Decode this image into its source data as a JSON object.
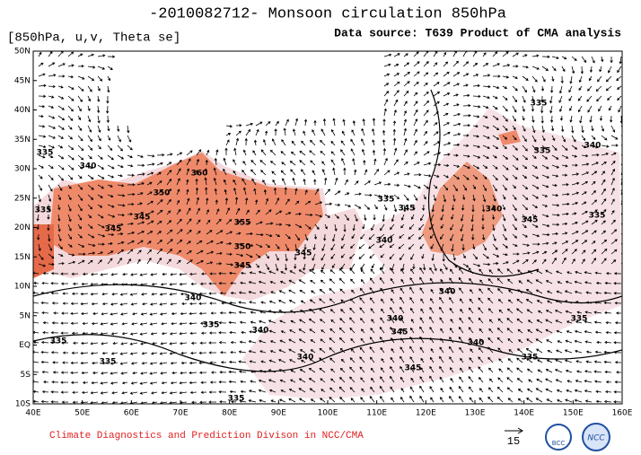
{
  "header": {
    "title": "-2010082712- Monsoon circulation 850hPa",
    "variables": "[850hPa, u,v, Theta se]",
    "source": "Data source: T639 Product of CMA analysis"
  },
  "map": {
    "lat_labels": [
      "50N",
      "45N",
      "40N",
      "35N",
      "30N",
      "25N",
      "20N",
      "15N",
      "10N",
      "5N",
      "EQ",
      "5S",
      "10S"
    ],
    "lon_labels": [
      "40E",
      "50E",
      "60E",
      "70E",
      "80E",
      "90E",
      "100E",
      "110E",
      "120E",
      "130E",
      "140E",
      "150E",
      "160E"
    ],
    "contour_labels": [
      "335",
      "340",
      "335",
      "350",
      "360",
      "345",
      "345",
      "355",
      "350",
      "345",
      "345",
      "340",
      "335",
      "335",
      "335",
      "340",
      "340",
      "335",
      "345",
      "340",
      "345",
      "335",
      "335",
      "340",
      "335",
      "340",
      "340",
      "345",
      "340",
      "335",
      "345",
      "335",
      "340",
      "335"
    ]
  },
  "footer": {
    "credit": "Climate Diagnostics and Prediction Divison in NCC/CMA",
    "scale": "15",
    "logo_left": "BCC",
    "logo_right": "NCC"
  }
}
